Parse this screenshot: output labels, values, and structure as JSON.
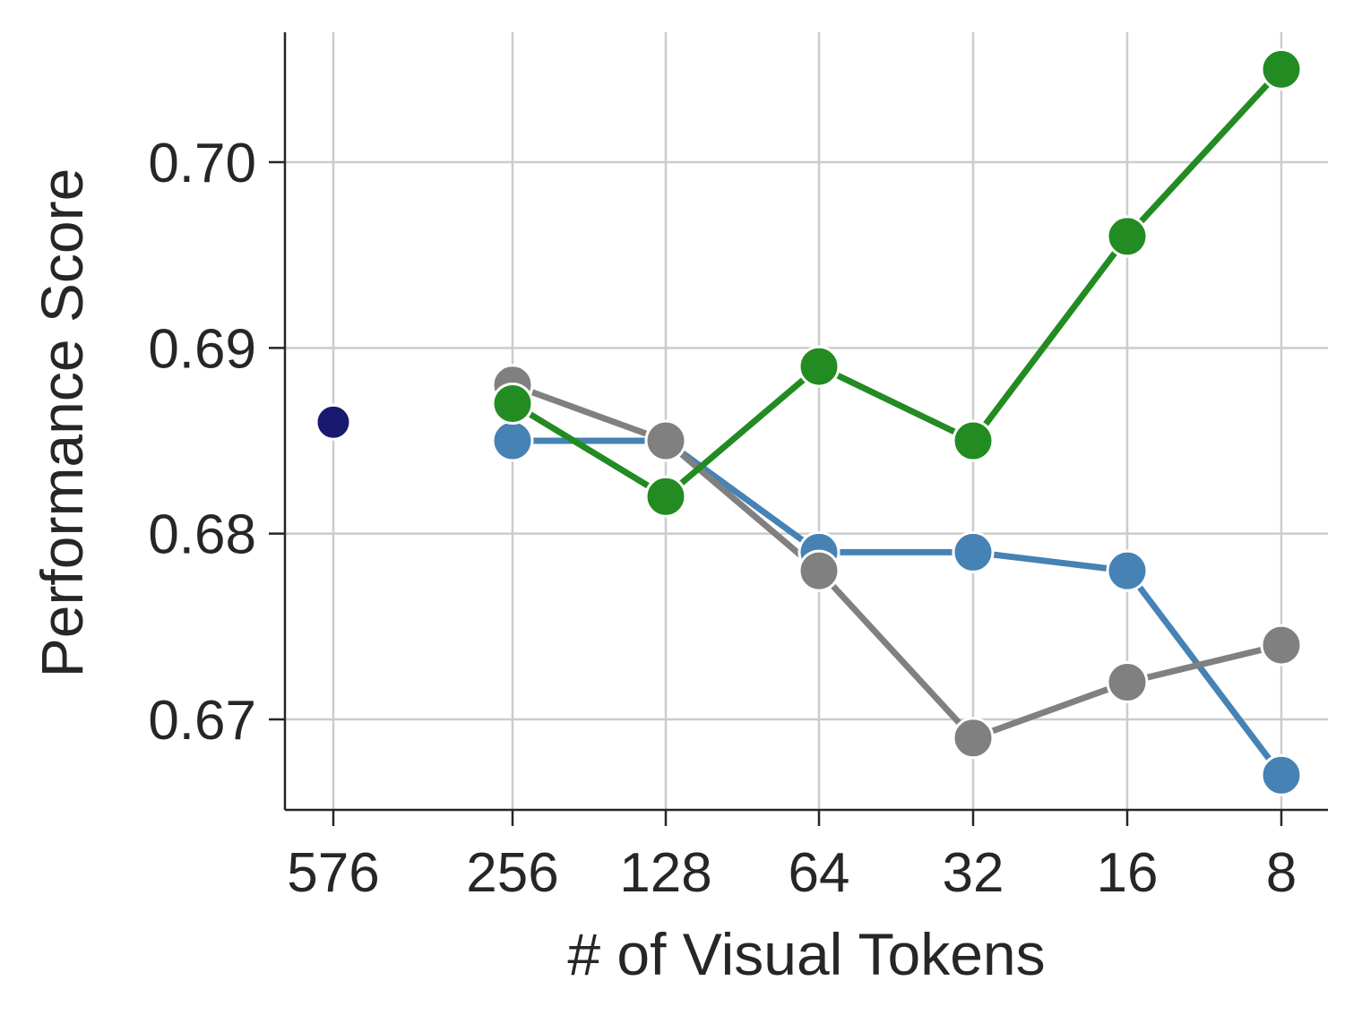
{
  "chart_data": {
    "type": "line",
    "title": "",
    "xlabel": "# of Visual Tokens",
    "ylabel": "Performance Score",
    "categories": [
      "576",
      "256",
      "128",
      "64",
      "32",
      "16",
      "8"
    ],
    "yticks": [
      "0.67",
      "0.68",
      "0.69",
      "0.70"
    ],
    "ylim": [
      0.665,
      0.707
    ],
    "grid": true,
    "legend": "none",
    "series": [
      {
        "color": "#4682b4",
        "points": [
          [
            256,
            0.685
          ],
          [
            128,
            0.685
          ],
          [
            64,
            0.679
          ],
          [
            32,
            0.679
          ],
          [
            16,
            0.678
          ],
          [
            8,
            0.667
          ]
        ]
      },
      {
        "color": "#808080",
        "points": [
          [
            256,
            0.688
          ],
          [
            128,
            0.685
          ],
          [
            64,
            0.678
          ],
          [
            32,
            0.669
          ],
          [
            16,
            0.672
          ],
          [
            8,
            0.674
          ]
        ]
      },
      {
        "color": "#228b22",
        "points": [
          [
            256,
            0.687
          ],
          [
            128,
            0.682
          ],
          [
            64,
            0.689
          ],
          [
            32,
            0.685
          ],
          [
            16,
            0.696
          ],
          [
            8,
            0.705
          ]
        ]
      },
      {
        "color": "#191970",
        "points": [
          [
            576,
            0.686
          ]
        ]
      }
    ]
  }
}
